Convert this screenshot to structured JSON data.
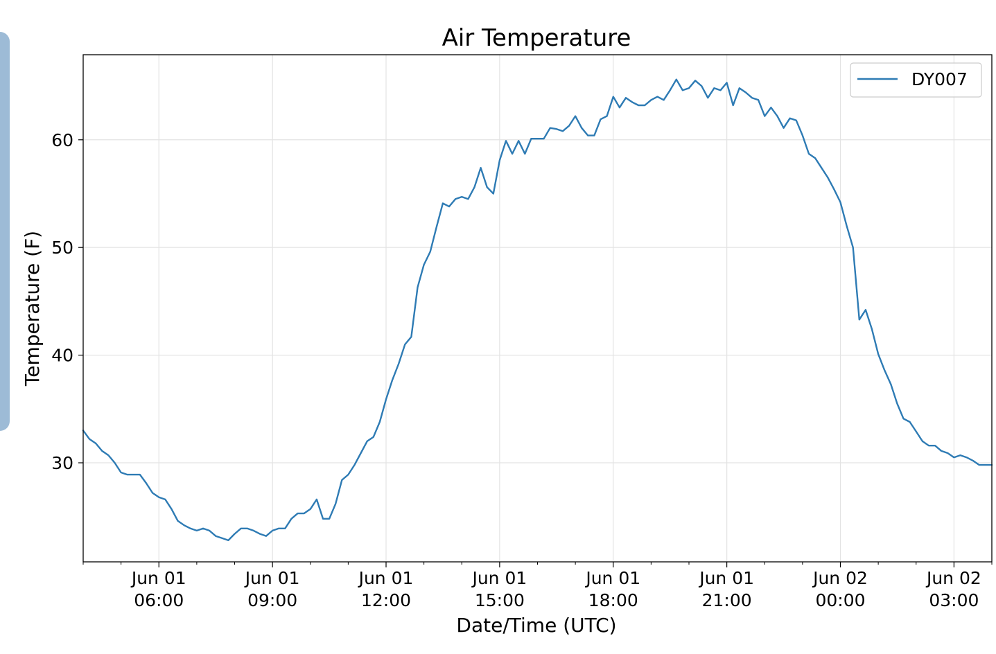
{
  "chart_data": {
    "type": "line",
    "title": "Air Temperature",
    "xlabel": "Date/Time (UTC)",
    "ylabel": "Temperature (F)",
    "x_unit": "hours (UTC)",
    "xlim": [
      "2019-06-01 04:00",
      "2019-06-02 04:00"
    ],
    "ylim": [
      20.8,
      67.9
    ],
    "yticks": [
      30,
      40,
      50,
      60
    ],
    "xticks": [
      {
        "line1": "Jun 01",
        "line2": "06:00",
        "t": "06:00"
      },
      {
        "line1": "Jun 01",
        "line2": "09:00",
        "t": "09:00"
      },
      {
        "line1": "Jun 01",
        "line2": "12:00",
        "t": "12:00"
      },
      {
        "line1": "Jun 01",
        "line2": "15:00",
        "t": "15:00"
      },
      {
        "line1": "Jun 01",
        "line2": "18:00",
        "t": "18:00"
      },
      {
        "line1": "Jun 01",
        "line2": "21:00",
        "t": "21:00"
      },
      {
        "line1": "Jun 02",
        "line2": "00:00",
        "t": "24:00"
      },
      {
        "line1": "Jun 02",
        "line2": "03:00",
        "t": "27:00"
      }
    ],
    "grid": true,
    "legend_position": "top-right",
    "series": [
      {
        "name": "DY007",
        "color": "#2e7bb4",
        "points": [
          [
            "04:00",
            33.0
          ],
          [
            "04:10",
            32.2
          ],
          [
            "04:20",
            31.8
          ],
          [
            "04:30",
            31.1
          ],
          [
            "04:40",
            30.7
          ],
          [
            "04:50",
            30.0
          ],
          [
            "05:00",
            29.1
          ],
          [
            "05:10",
            28.9
          ],
          [
            "05:20",
            28.9
          ],
          [
            "05:30",
            28.9
          ],
          [
            "05:40",
            28.1
          ],
          [
            "05:50",
            27.2
          ],
          [
            "06:00",
            26.8
          ],
          [
            "06:10",
            26.6
          ],
          [
            "06:20",
            25.7
          ],
          [
            "06:30",
            24.6
          ],
          [
            "06:40",
            24.2
          ],
          [
            "06:50",
            23.9
          ],
          [
            "07:00",
            23.7
          ],
          [
            "07:10",
            23.9
          ],
          [
            "07:20",
            23.7
          ],
          [
            "07:30",
            23.2
          ],
          [
            "07:40",
            23.0
          ],
          [
            "07:50",
            22.8
          ],
          [
            "08:00",
            23.4
          ],
          [
            "08:10",
            23.9
          ],
          [
            "08:20",
            23.9
          ],
          [
            "08:30",
            23.7
          ],
          [
            "08:40",
            23.4
          ],
          [
            "08:50",
            23.2
          ],
          [
            "09:00",
            23.7
          ],
          [
            "09:10",
            23.9
          ],
          [
            "09:20",
            23.9
          ],
          [
            "09:30",
            24.8
          ],
          [
            "09:40",
            25.3
          ],
          [
            "09:50",
            25.3
          ],
          [
            "10:00",
            25.7
          ],
          [
            "10:10",
            26.6
          ],
          [
            "10:20",
            24.8
          ],
          [
            "10:30",
            24.8
          ],
          [
            "10:40",
            26.2
          ],
          [
            "10:50",
            28.4
          ],
          [
            "11:00",
            28.9
          ],
          [
            "11:10",
            29.8
          ],
          [
            "11:20",
            30.9
          ],
          [
            "11:30",
            32.0
          ],
          [
            "11:40",
            32.4
          ],
          [
            "11:50",
            33.8
          ],
          [
            "12:00",
            35.9
          ],
          [
            "12:10",
            37.7
          ],
          [
            "12:20",
            39.2
          ],
          [
            "12:30",
            41.0
          ],
          [
            "12:40",
            41.7
          ],
          [
            "12:50",
            46.3
          ],
          [
            "13:00",
            48.4
          ],
          [
            "13:10",
            49.6
          ],
          [
            "13:20",
            51.9
          ],
          [
            "13:30",
            54.1
          ],
          [
            "13:40",
            53.8
          ],
          [
            "13:50",
            54.5
          ],
          [
            "14:00",
            54.7
          ],
          [
            "14:10",
            54.5
          ],
          [
            "14:20",
            55.6
          ],
          [
            "14:30",
            57.4
          ],
          [
            "14:40",
            55.6
          ],
          [
            "14:50",
            55.0
          ],
          [
            "15:00",
            58.1
          ],
          [
            "15:10",
            59.9
          ],
          [
            "15:20",
            58.7
          ],
          [
            "15:30",
            59.9
          ],
          [
            "15:40",
            58.7
          ],
          [
            "15:50",
            60.1
          ],
          [
            "16:00",
            60.1
          ],
          [
            "16:10",
            60.1
          ],
          [
            "16:20",
            61.1
          ],
          [
            "16:30",
            61.0
          ],
          [
            "16:40",
            60.8
          ],
          [
            "16:50",
            61.3
          ],
          [
            "17:00",
            62.2
          ],
          [
            "17:10",
            61.1
          ],
          [
            "17:20",
            60.4
          ],
          [
            "17:30",
            60.4
          ],
          [
            "17:40",
            61.9
          ],
          [
            "17:50",
            62.2
          ],
          [
            "18:00",
            64.0
          ],
          [
            "18:10",
            63.0
          ],
          [
            "18:20",
            63.9
          ],
          [
            "18:30",
            63.5
          ],
          [
            "18:40",
            63.2
          ],
          [
            "18:50",
            63.2
          ],
          [
            "19:00",
            63.7
          ],
          [
            "19:10",
            64.0
          ],
          [
            "19:20",
            63.7
          ],
          [
            "19:30",
            64.6
          ],
          [
            "19:40",
            65.6
          ],
          [
            "19:50",
            64.6
          ],
          [
            "20:00",
            64.8
          ],
          [
            "20:10",
            65.5
          ],
          [
            "20:20",
            65.0
          ],
          [
            "20:30",
            63.9
          ],
          [
            "20:40",
            64.8
          ],
          [
            "20:50",
            64.6
          ],
          [
            "21:00",
            65.3
          ],
          [
            "21:10",
            63.2
          ],
          [
            "21:20",
            64.8
          ],
          [
            "21:30",
            64.4
          ],
          [
            "21:40",
            63.9
          ],
          [
            "21:50",
            63.7
          ],
          [
            "22:00",
            62.2
          ],
          [
            "22:10",
            63.0
          ],
          [
            "22:20",
            62.2
          ],
          [
            "22:30",
            61.1
          ],
          [
            "22:40",
            62.0
          ],
          [
            "22:50",
            61.8
          ],
          [
            "23:00",
            60.4
          ],
          [
            "23:10",
            58.7
          ],
          [
            "23:20",
            58.3
          ],
          [
            "23:30",
            57.4
          ],
          [
            "23:40",
            56.5
          ],
          [
            "23:50",
            55.4
          ],
          [
            "24:00",
            54.2
          ],
          [
            "24:10",
            52.0
          ],
          [
            "24:20",
            50.0
          ],
          [
            "24:30",
            43.3
          ],
          [
            "24:40",
            44.2
          ],
          [
            "24:50",
            42.4
          ],
          [
            "25:00",
            40.1
          ],
          [
            "25:10",
            38.6
          ],
          [
            "25:20",
            37.3
          ],
          [
            "25:30",
            35.5
          ],
          [
            "25:40",
            34.1
          ],
          [
            "25:50",
            33.8
          ],
          [
            "26:00",
            32.9
          ],
          [
            "26:10",
            32.0
          ],
          [
            "26:20",
            31.6
          ],
          [
            "26:30",
            31.6
          ],
          [
            "26:40",
            31.1
          ],
          [
            "26:50",
            30.9
          ],
          [
            "27:00",
            30.5
          ],
          [
            "27:10",
            30.7
          ],
          [
            "27:20",
            30.5
          ],
          [
            "27:30",
            30.2
          ],
          [
            "27:40",
            29.8
          ],
          [
            "27:50",
            29.8
          ],
          [
            "28:00",
            29.8
          ]
        ]
      }
    ]
  }
}
